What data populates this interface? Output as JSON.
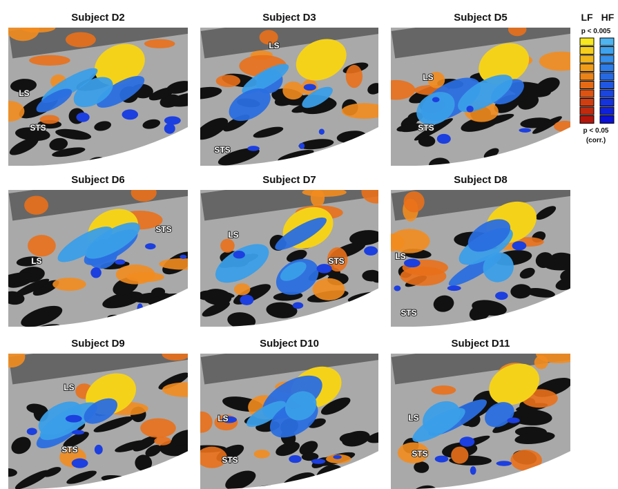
{
  "panels": [
    {
      "title": "Subject D2",
      "labels": [
        "LS",
        "STS"
      ]
    },
    {
      "title": "Subject D3",
      "labels": [
        "LS",
        "STS"
      ]
    },
    {
      "title": "Subject D5",
      "labels": [
        "LS",
        "STS"
      ]
    },
    {
      "title": "Subject D6",
      "labels": [
        "STS",
        "LS"
      ]
    },
    {
      "title": "Subject D7",
      "labels": [
        "LS",
        "STS"
      ]
    },
    {
      "title": "Subject D8",
      "labels": [
        "LS",
        "STS"
      ]
    },
    {
      "title": "Subject D9",
      "labels": [
        "LS",
        "STS"
      ]
    },
    {
      "title": "Subject D10",
      "labels": [
        "LS",
        "STS"
      ]
    },
    {
      "title": "Subject D11",
      "labels": [
        "LS",
        "STS"
      ]
    }
  ],
  "legend": {
    "columns": [
      "LF",
      "HF"
    ],
    "top": "p < 0.005",
    "bottom": "p < 0.05",
    "note": "(corr.)"
  }
}
